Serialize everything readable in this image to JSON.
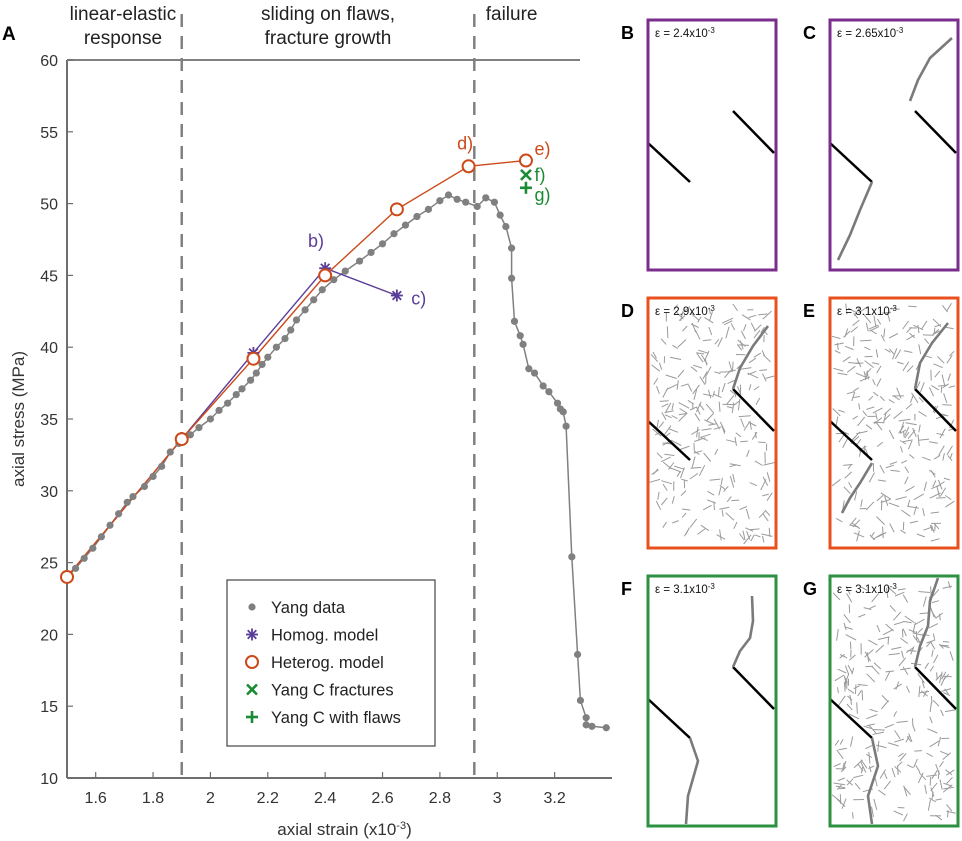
{
  "main_panel_letter": "A",
  "chart_data": {
    "type": "scatter",
    "xlabel": "axial strain (x10",
    "xlabel_exp": "-3",
    "xlabel_end": ")",
    "ylabel": "axial stress (MPa)",
    "xlim": [
      1.5,
      3.4
    ],
    "ylim": [
      10,
      60
    ],
    "xticks": [
      1.6,
      1.8,
      2,
      2.2,
      2.4,
      2.6,
      2.8,
      3,
      3.2
    ],
    "xtick_labels": [
      "1.6",
      "1.8",
      "2",
      "2.2",
      "2.4",
      "2.6",
      "2.8",
      "3",
      "3.2"
    ],
    "yticks": [
      10,
      15,
      20,
      25,
      30,
      35,
      40,
      45,
      50,
      55,
      60
    ],
    "ytick_labels": [
      "10",
      "15",
      "20",
      "25",
      "30",
      "35",
      "40",
      "45",
      "50",
      "55",
      "60"
    ],
    "regions": [
      {
        "lines": [
          "linear-elastic",
          "response"
        ],
        "x_center": 1.695
      },
      {
        "lines": [
          "sliding on flaws,",
          "fracture growth"
        ],
        "x_center": 2.41
      },
      {
        "lines": [
          "failure"
        ],
        "x_center": 3.05
      }
    ],
    "dividers_x": [
      1.9,
      2.92
    ],
    "series": [
      {
        "name": "Yang data",
        "marker": "dot",
        "color": "#808080",
        "points": [
          [
            1.5,
            24
          ],
          [
            1.53,
            24.6
          ],
          [
            1.56,
            25.3
          ],
          [
            1.59,
            26
          ],
          [
            1.62,
            26.8
          ],
          [
            1.65,
            27.6
          ],
          [
            1.68,
            28.4
          ],
          [
            1.71,
            29.2
          ],
          [
            1.73,
            29.6
          ],
          [
            1.77,
            30.3
          ],
          [
            1.8,
            31
          ],
          [
            1.83,
            31.7
          ],
          [
            1.86,
            32.7
          ],
          [
            1.89,
            33.3
          ],
          [
            1.93,
            33.9
          ],
          [
            1.96,
            34.4
          ],
          [
            2.0,
            35
          ],
          [
            2.03,
            35.6
          ],
          [
            2.06,
            36.1
          ],
          [
            2.09,
            36.7
          ],
          [
            2.11,
            37.1
          ],
          [
            2.14,
            37.7
          ],
          [
            2.16,
            38.2
          ],
          [
            2.18,
            38.8
          ],
          [
            2.2,
            39.3
          ],
          [
            2.23,
            40
          ],
          [
            2.26,
            40.6
          ],
          [
            2.28,
            41.2
          ],
          [
            2.3,
            41.9
          ],
          [
            2.33,
            42.6
          ],
          [
            2.36,
            43.3
          ],
          [
            2.39,
            44
          ],
          [
            2.43,
            44.7
          ],
          [
            2.47,
            45.3
          ],
          [
            2.52,
            46
          ],
          [
            2.56,
            46.6
          ],
          [
            2.6,
            47.2
          ],
          [
            2.64,
            47.9
          ],
          [
            2.68,
            48.5
          ],
          [
            2.72,
            49.1
          ],
          [
            2.76,
            49.6
          ],
          [
            2.8,
            50.2
          ],
          [
            2.83,
            50.6
          ],
          [
            2.86,
            50.3
          ],
          [
            2.89,
            50.1
          ],
          [
            2.93,
            49.8
          ],
          [
            2.96,
            50.4
          ],
          [
            2.99,
            50.1
          ],
          [
            3.01,
            49.2
          ],
          [
            3.03,
            48.4
          ],
          [
            3.05,
            46.9
          ],
          [
            3.05,
            44.8
          ],
          [
            3.06,
            41.8
          ],
          [
            3.08,
            40.8
          ],
          [
            3.09,
            40.2
          ],
          [
            3.11,
            38.5
          ],
          [
            3.13,
            38.2
          ],
          [
            3.16,
            37.3
          ],
          [
            3.18,
            36.9
          ],
          [
            3.21,
            36.1
          ],
          [
            3.22,
            35.7
          ],
          [
            3.23,
            35.5
          ],
          [
            3.24,
            34.5
          ],
          [
            3.26,
            25.4
          ],
          [
            3.28,
            18.6
          ],
          [
            3.29,
            15.4
          ],
          [
            3.31,
            14.2
          ],
          [
            3.31,
            13.7
          ],
          [
            3.33,
            13.6
          ],
          [
            3.38,
            13.5
          ]
        ]
      },
      {
        "name": "Homog. model",
        "marker": "asterisk",
        "color": "#5a3d99",
        "points": [
          [
            1.5,
            24
          ],
          [
            1.9,
            33.6
          ],
          [
            2.15,
            39.6
          ],
          [
            2.4,
            45.5
          ],
          [
            2.65,
            43.6
          ]
        ]
      },
      {
        "name": "Heterog. model",
        "marker": "circle",
        "color": "#cc4a1a",
        "points": [
          [
            1.5,
            24
          ],
          [
            1.9,
            33.6
          ],
          [
            2.15,
            39.2
          ],
          [
            2.4,
            45
          ],
          [
            2.65,
            49.6
          ],
          [
            2.9,
            52.6
          ],
          [
            3.1,
            53
          ]
        ]
      },
      {
        "name": "Yang C fractures",
        "marker": "x",
        "color": "#1a8c33",
        "points": [
          [
            3.1,
            52
          ]
        ]
      },
      {
        "name": "Yang C with flaws",
        "marker": "plus",
        "color": "#1a8c33",
        "points": [
          [
            3.1,
            51.1
          ]
        ]
      }
    ],
    "annotations": [
      {
        "text": "b)",
        "color": "#5a3d99",
        "x": 2.34,
        "y": 47.4
      },
      {
        "text": "c)",
        "color": "#5a3d99",
        "x": 2.7,
        "y": 43.4
      },
      {
        "text": "d)",
        "color": "#cc4a1a",
        "x": 2.86,
        "y": 54.2
      },
      {
        "text": "e)",
        "color": "#cc4a1a",
        "x": 3.13,
        "y": 53.8
      },
      {
        "text": "f)",
        "color": "#1a8c33",
        "x": 3.13,
        "y": 52
      },
      {
        "text": "g)",
        "color": "#1a8c33",
        "x": 3.13,
        "y": 50.6
      }
    ],
    "legend": {
      "placement": "bottom-center"
    }
  },
  "panels": [
    {
      "letter": "B",
      "strain": "ε = 2.4x10",
      "exp": "-3",
      "color": "#7a2d8c",
      "variant": "b"
    },
    {
      "letter": "C",
      "strain": "ε = 2.65x10",
      "exp": "-3",
      "color": "#7a2d8c",
      "variant": "c"
    },
    {
      "letter": "D",
      "strain": "ε = 2.9x10",
      "exp": "-3",
      "color": "#e8501e",
      "variant": "d"
    },
    {
      "letter": "E",
      "strain": "ε = 3.1x10",
      "exp": "-3",
      "color": "#e8501e",
      "variant": "e"
    },
    {
      "letter": "F",
      "strain": "ε = 3.1x10",
      "exp": "-3",
      "color": "#2e9141",
      "variant": "f"
    },
    {
      "letter": "G",
      "strain": "ε = 3.1x10",
      "exp": "-3",
      "color": "#2e9141",
      "variant": "g"
    }
  ]
}
